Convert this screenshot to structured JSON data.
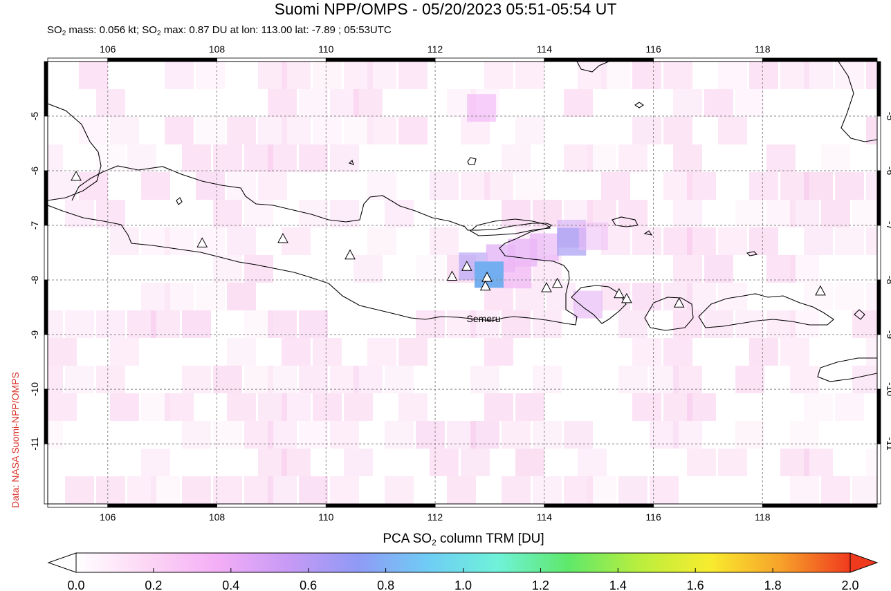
{
  "title": "Suomi NPP/OMPS - 05/20/2023 05:51-05:54 UT",
  "subtitle": {
    "mass_prefix": "SO",
    "mass_sub": "2",
    "mass_text": " mass: 0.056 kt; SO",
    "max_sub": "2",
    "max_text": " max: 0.87 DU at lon: 113.00 lat: -7.89 ; 05:53UTC"
  },
  "credit": "Data: NASA Suomi-NPP/OMPS",
  "map": {
    "lon_range": [
      104.9,
      120.1
    ],
    "lat_range": [
      -12.1,
      -4.0
    ],
    "lon_ticks": [
      "106",
      "108",
      "110",
      "112",
      "114",
      "116",
      "118"
    ],
    "lat_ticks": [
      "-5",
      "-6",
      "-7",
      "-8",
      "-9",
      "-10",
      "-11"
    ],
    "grid": true,
    "volcano_label": "Semeru",
    "volcanoes": [
      {
        "lon": 105.42,
        "lat": -6.1
      },
      {
        "lon": 107.73,
        "lat": -7.32
      },
      {
        "lon": 109.21,
        "lat": -7.24
      },
      {
        "lon": 110.44,
        "lat": -7.54
      },
      {
        "lon": 112.31,
        "lat": -7.93
      },
      {
        "lon": 112.58,
        "lat": -7.75
      },
      {
        "lon": 112.95,
        "lat": -7.95
      },
      {
        "lon": 112.92,
        "lat": -8.11
      },
      {
        "lon": 114.04,
        "lat": -8.14
      },
      {
        "lon": 114.24,
        "lat": -8.06
      },
      {
        "lon": 115.37,
        "lat": -8.25
      },
      {
        "lon": 115.51,
        "lat": -8.34
      },
      {
        "lon": 116.47,
        "lat": -8.42
      },
      {
        "lon": 119.06,
        "lat": -8.2
      }
    ],
    "max_so2": {
      "lon": 113.0,
      "lat": -7.89,
      "value": 0.87
    }
  },
  "colorbar": {
    "title_prefix": "PCA SO",
    "title_sub": "2",
    "title_suffix": " column TRM [DU]",
    "ticks": [
      "0.0",
      "0.2",
      "0.4",
      "0.6",
      "0.8",
      "1.0",
      "1.2",
      "1.4",
      "1.6",
      "1.8",
      "2.0"
    ],
    "range": [
      0.0,
      2.0
    ],
    "colors": [
      "#ffffff",
      "#fcd7f5",
      "#f4aef6",
      "#c79af5",
      "#8f9af5",
      "#6fcdf5",
      "#6ff2d9",
      "#5fe86a",
      "#b9ee3e",
      "#f8ec2e",
      "#f7a32a",
      "#f03a1e"
    ]
  }
}
